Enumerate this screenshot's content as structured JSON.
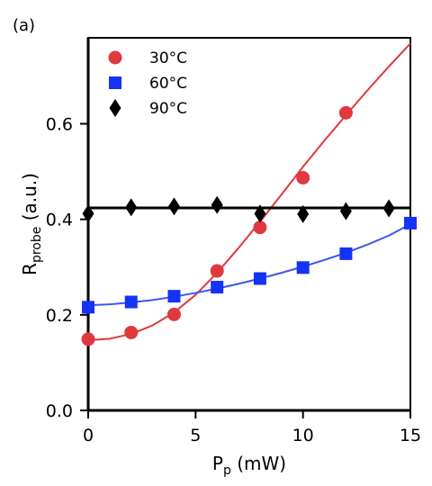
{
  "panel_label": "(a)",
  "chart_data": {
    "type": "scatter",
    "x_axis": {
      "label_main": "P",
      "label_sub": "p",
      "label_unit": " (mW)",
      "range": [
        0,
        15
      ],
      "ticks": [
        0,
        5,
        10,
        15
      ]
    },
    "y_axis": {
      "label_main": "R",
      "label_sub": "probe",
      "label_unit": " (a.u.)",
      "range": [
        0,
        0.78
      ],
      "ticks": [
        0.0,
        0.2,
        0.4,
        0.6
      ],
      "tick_labels": [
        "0.0",
        "0.2",
        "0.4",
        "0.6"
      ]
    },
    "grid": false,
    "legend_position": "top-left",
    "series": [
      {
        "name": "30°C",
        "marker": "circle",
        "color": "#e0383e",
        "fit_color": "#e0383e",
        "x": [
          0,
          2,
          4,
          6,
          8,
          10,
          12
        ],
        "y": [
          0.149,
          0.163,
          0.201,
          0.292,
          0.383,
          0.487,
          0.623
        ],
        "fit": {
          "x": [
            0,
            1,
            2,
            3,
            4,
            5,
            6,
            7,
            8,
            9,
            10,
            11,
            12,
            13,
            14,
            15
          ],
          "y": [
            0.147,
            0.15,
            0.16,
            0.178,
            0.205,
            0.242,
            0.288,
            0.34,
            0.395,
            0.452,
            0.51,
            0.565,
            0.618,
            0.67,
            0.72,
            0.768
          ]
        }
      },
      {
        "name": "60°C",
        "marker": "square",
        "color": "#1533f2",
        "fit_color": "#3f55ee",
        "x": [
          0,
          2,
          4,
          6,
          8,
          10,
          12,
          15
        ],
        "y": [
          0.216,
          0.227,
          0.239,
          0.258,
          0.276,
          0.299,
          0.328,
          0.392
        ],
        "fit": {
          "x": [
            0,
            1,
            2,
            3,
            4,
            5,
            6,
            7,
            8,
            9,
            10,
            11,
            12,
            13,
            14,
            15
          ],
          "y": [
            0.22,
            0.222,
            0.226,
            0.231,
            0.238,
            0.246,
            0.255,
            0.265,
            0.276,
            0.288,
            0.301,
            0.315,
            0.33,
            0.347,
            0.366,
            0.39
          ]
        }
      },
      {
        "name": "90°C",
        "marker": "diamond",
        "color": "#000000",
        "fit_color": "#000000",
        "x": [
          0,
          2,
          4,
          6,
          8,
          10,
          12,
          14
        ],
        "y": [
          0.412,
          0.425,
          0.427,
          0.43,
          0.412,
          0.411,
          0.417,
          0.423
        ],
        "fit": {
          "x": [
            0,
            15
          ],
          "y": [
            0.424,
            0.424
          ]
        }
      }
    ]
  }
}
